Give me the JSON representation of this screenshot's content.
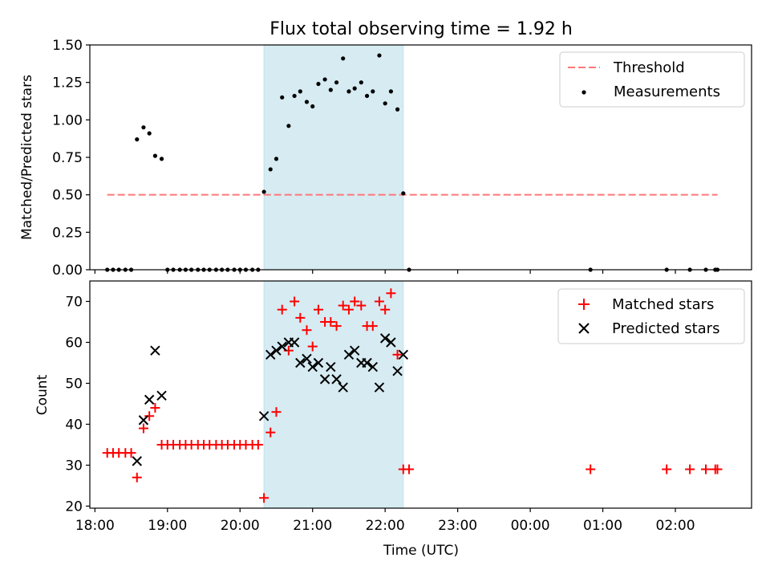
{
  "title": "Flux total observing time = 1.92 h",
  "xlabel": "Time (UTC)",
  "x_ticks": [
    {
      "h": 18.0,
      "label": "18:00"
    },
    {
      "h": 19.0,
      "label": "19:00"
    },
    {
      "h": 20.0,
      "label": "20:00"
    },
    {
      "h": 21.0,
      "label": "21:00"
    },
    {
      "h": 22.0,
      "label": "22:00"
    },
    {
      "h": 23.0,
      "label": "23:00"
    },
    {
      "h": 24.0,
      "label": "00:00"
    },
    {
      "h": 25.0,
      "label": "01:00"
    },
    {
      "h": 26.0,
      "label": "02:00"
    }
  ],
  "colors": {
    "shade": "#add8e6",
    "threshold": "#ff7777",
    "measurement": "#000000",
    "matched": "#ff0000",
    "predicted": "#000000"
  },
  "chart_data": [
    {
      "type": "scatter",
      "panel": "top",
      "ylabel": "Matched/Predicted stars",
      "xlim": [
        17.93,
        27.05
      ],
      "ylim": [
        0,
        1.5
      ],
      "y_ticks": [
        "0.00",
        "0.25",
        "0.50",
        "0.75",
        "1.00",
        "1.25",
        "1.50"
      ],
      "shaded_span": [
        20.33,
        22.25
      ],
      "threshold": {
        "name": "Threshold",
        "y": 0.5,
        "x_range": [
          18.17,
          26.58
        ]
      },
      "legend": [
        "Threshold",
        "Measurements"
      ],
      "legend_position": "top-right",
      "series": [
        {
          "name": "Measurements",
          "x": [
            18.17,
            18.25,
            18.33,
            18.42,
            18.5,
            18.58,
            18.67,
            18.75,
            18.83,
            18.92,
            19.0,
            19.08,
            19.17,
            19.25,
            19.33,
            19.42,
            19.5,
            19.58,
            19.67,
            19.75,
            19.83,
            19.92,
            20.0,
            20.08,
            20.17,
            20.25,
            20.33,
            20.42,
            20.5,
            20.58,
            20.67,
            20.75,
            20.83,
            20.92,
            21.0,
            21.08,
            21.17,
            21.25,
            21.33,
            21.42,
            21.5,
            21.58,
            21.67,
            21.75,
            21.83,
            21.92,
            22.0,
            22.08,
            22.17,
            22.25,
            22.33,
            24.83,
            25.88,
            26.2,
            26.42,
            26.55,
            26.58
          ],
          "y": [
            0,
            0,
            0,
            0,
            0,
            0.87,
            0.95,
            0.91,
            0.76,
            0.74,
            0,
            0,
            0,
            0,
            0,
            0,
            0,
            0,
            0,
            0,
            0,
            0,
            0,
            0,
            0,
            0,
            0.52,
            0.67,
            0.74,
            1.15,
            0.96,
            1.16,
            1.19,
            1.12,
            1.09,
            1.24,
            1.27,
            1.2,
            1.25,
            1.41,
            1.19,
            1.21,
            1.25,
            1.16,
            1.19,
            1.43,
            1.11,
            1.19,
            1.07,
            0.51,
            0,
            0,
            0,
            0,
            0,
            0,
            0
          ]
        }
      ]
    },
    {
      "type": "scatter",
      "panel": "bottom",
      "ylabel": "Count",
      "xlim": [
        17.93,
        27.05
      ],
      "ylim": [
        19.5,
        75
      ],
      "y_ticks": [
        "20",
        "30",
        "40",
        "50",
        "60",
        "70"
      ],
      "shaded_span": [
        20.33,
        22.25
      ],
      "legend": [
        "Matched stars",
        "Predicted stars"
      ],
      "legend_position": "top-right",
      "series": [
        {
          "name": "Matched stars",
          "marker": "plus",
          "x": [
            18.17,
            18.25,
            18.33,
            18.42,
            18.5,
            18.58,
            18.67,
            18.75,
            18.83,
            18.92,
            19.0,
            19.08,
            19.17,
            19.25,
            19.33,
            19.42,
            19.5,
            19.58,
            19.67,
            19.75,
            19.83,
            19.92,
            20.0,
            20.08,
            20.17,
            20.25,
            20.33,
            20.42,
            20.5,
            20.58,
            20.67,
            20.75,
            20.83,
            20.92,
            21.0,
            21.08,
            21.17,
            21.25,
            21.33,
            21.42,
            21.5,
            21.58,
            21.67,
            21.75,
            21.83,
            21.92,
            22.0,
            22.08,
            22.17,
            22.25,
            22.33,
            24.83,
            25.88,
            26.2,
            26.42,
            26.55,
            26.58
          ],
          "y": [
            33,
            33,
            33,
            33,
            33,
            27,
            39,
            42,
            44,
            35,
            35,
            35,
            35,
            35,
            35,
            35,
            35,
            35,
            35,
            35,
            35,
            35,
            35,
            35,
            35,
            35,
            22,
            38,
            43,
            68,
            58,
            70,
            66,
            63,
            59,
            68,
            65,
            65,
            64,
            69,
            68,
            70,
            69,
            64,
            64,
            70,
            68,
            72,
            57,
            29,
            29,
            29,
            29,
            29,
            29,
            29,
            29
          ]
        },
        {
          "name": "Predicted stars",
          "marker": "x",
          "x": [
            18.58,
            18.67,
            18.75,
            18.83,
            18.92,
            20.33,
            20.42,
            20.5,
            20.58,
            20.67,
            20.75,
            20.83,
            20.92,
            21.0,
            21.08,
            21.17,
            21.25,
            21.33,
            21.42,
            21.5,
            21.58,
            21.67,
            21.75,
            21.83,
            21.92,
            22.0,
            22.08,
            22.17,
            22.25
          ],
          "y": [
            31,
            41,
            46,
            58,
            47,
            42,
            57,
            58,
            59,
            60,
            60,
            55,
            56,
            54,
            55,
            51,
            54,
            51,
            49,
            57,
            58,
            55,
            55,
            54,
            49,
            61,
            60,
            53,
            57
          ]
        }
      ]
    }
  ]
}
